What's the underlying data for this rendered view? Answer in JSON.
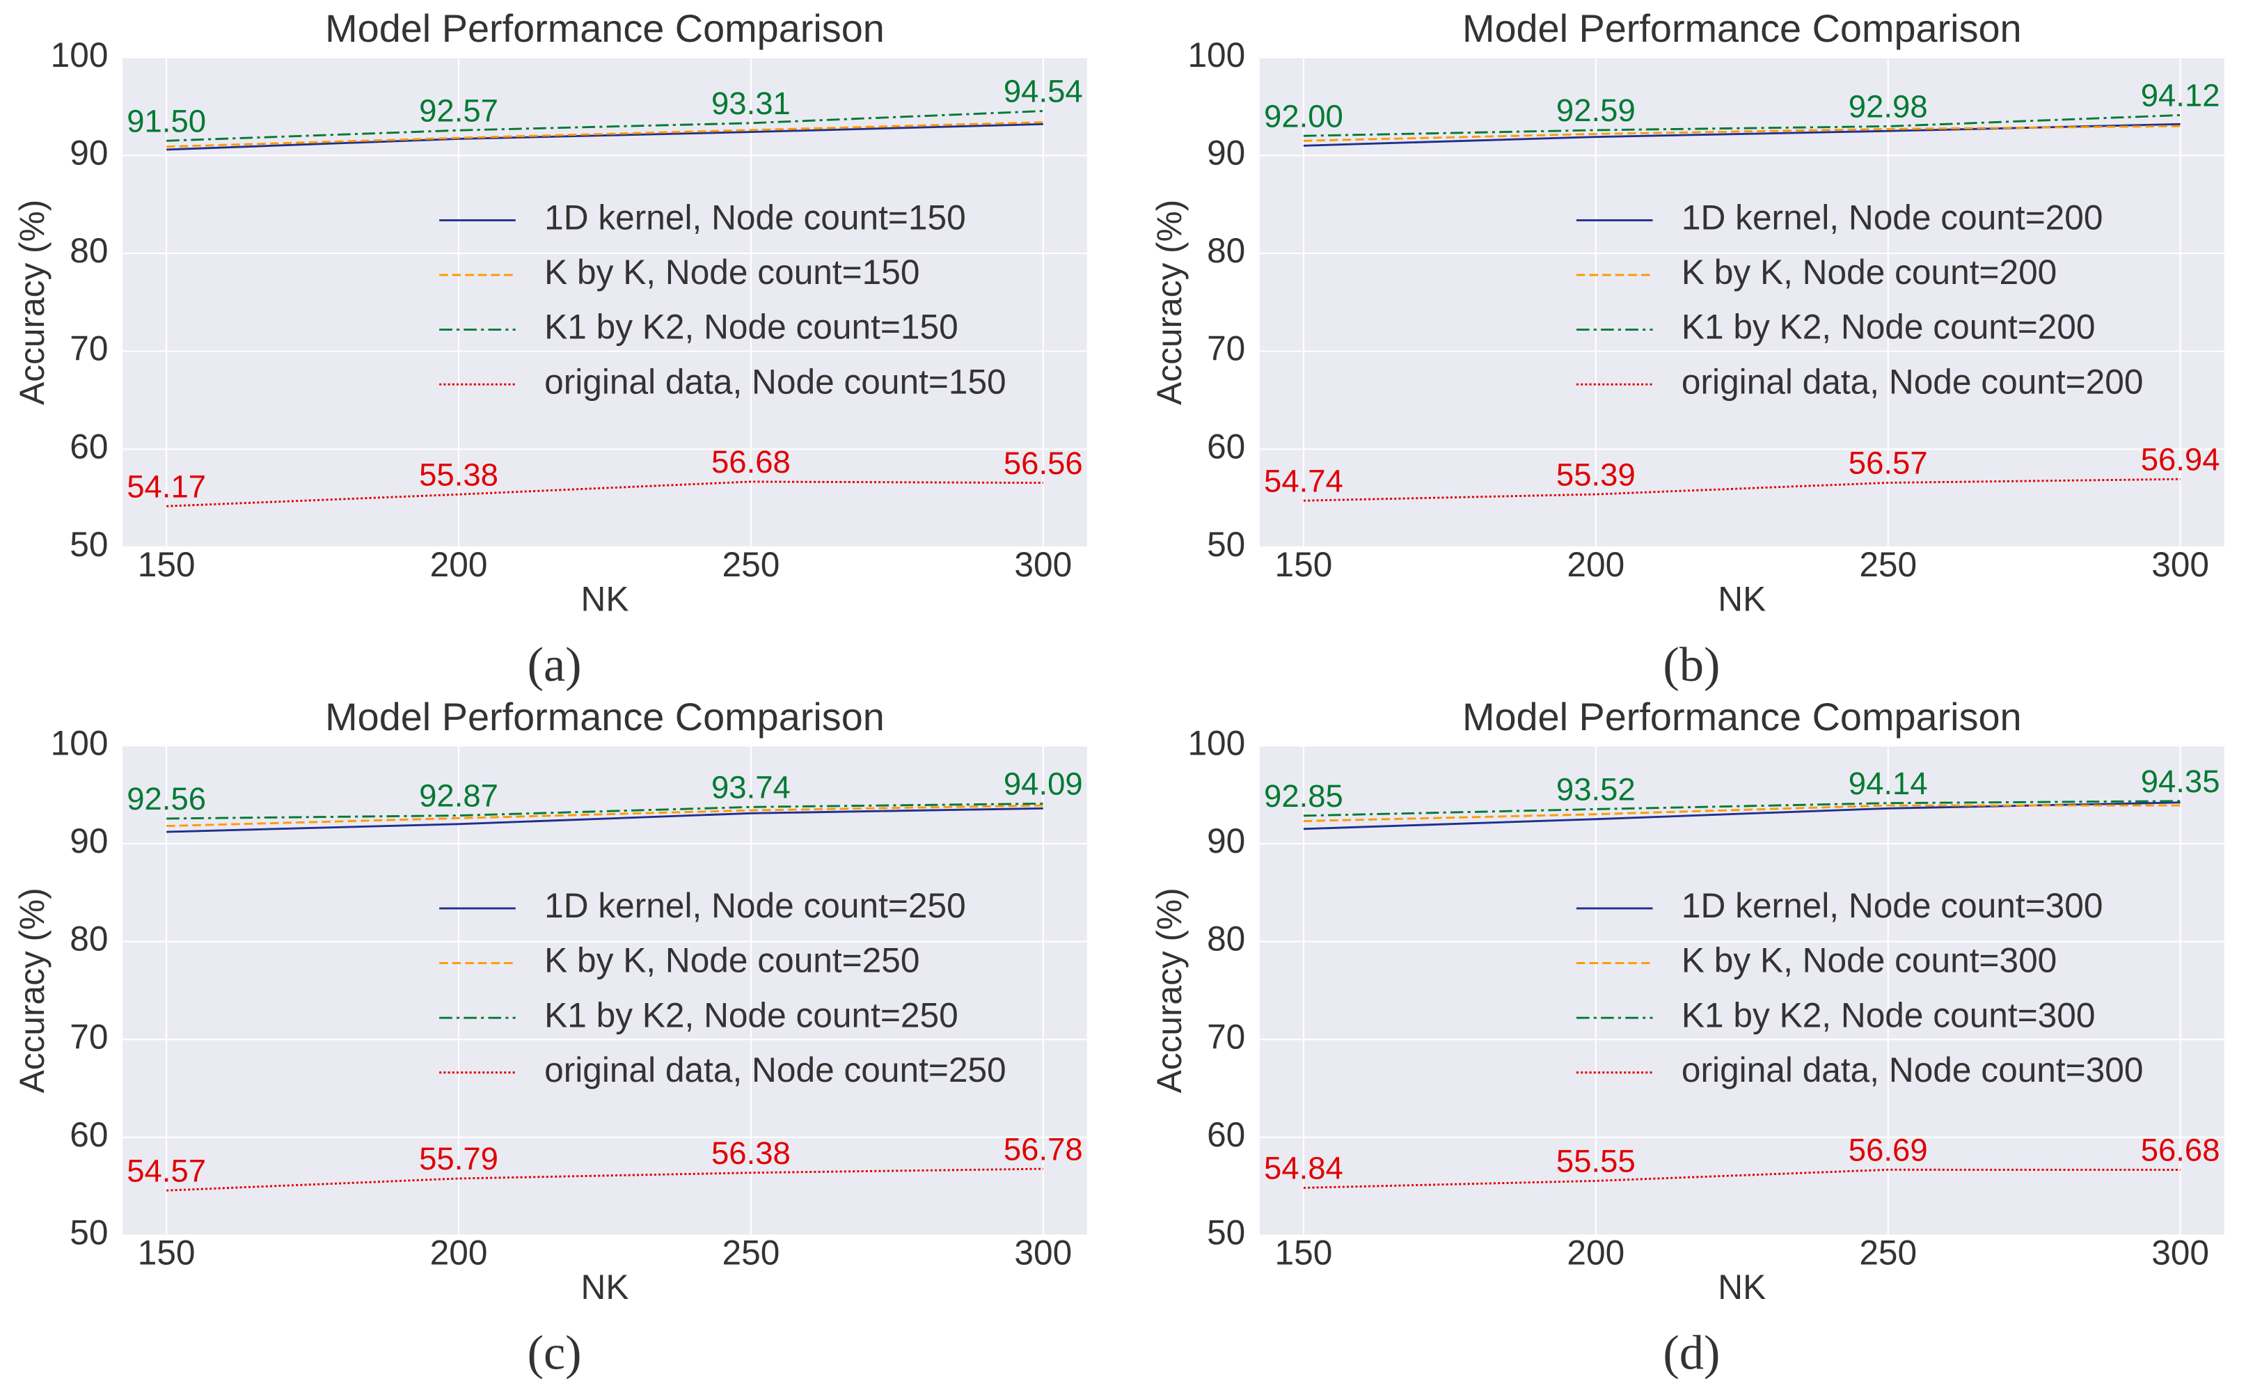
{
  "chart_data": [
    {
      "type": "line",
      "title": "Model Performance Comparison",
      "caption": "(a)",
      "x_label": "NK",
      "y_label": "Accuracy (%)",
      "x": [
        150,
        200,
        250,
        300
      ],
      "xlim": [
        142.5,
        307.5
      ],
      "ylim": [
        50,
        100
      ],
      "xticks": [
        150,
        200,
        250,
        300
      ],
      "yticks": [
        50,
        60,
        70,
        80,
        90,
        100
      ],
      "grid": true,
      "legend": "center right",
      "series": [
        {
          "name": "1D kernel, Node count=150",
          "color": "#1f2f8f",
          "linestyle": "solid",
          "values": [
            90.6,
            91.7,
            92.4,
            93.2
          ]
        },
        {
          "name": "K by K, Node count=150",
          "color": "#ff9900",
          "linestyle": "dashed",
          "values": [
            90.9,
            91.8,
            92.6,
            93.4
          ]
        },
        {
          "name": "K1 by K2, Node count=150",
          "color": "#007a33",
          "linestyle": "dashdot",
          "values": [
            91.5,
            92.57,
            93.31,
            94.54
          ],
          "value_labels": [
            "91.50",
            "92.57",
            "93.31",
            "94.54"
          ]
        },
        {
          "name": "original data, Node count=150",
          "color": "#e00000",
          "linestyle": "dotted",
          "values": [
            54.17,
            55.38,
            56.68,
            56.56
          ],
          "value_labels": [
            "54.17",
            "55.38",
            "56.68",
            "56.56"
          ]
        }
      ]
    },
    {
      "type": "line",
      "title": "Model Performance Comparison",
      "caption": "(b)",
      "x_label": "NK",
      "y_label": "Accuracy (%)",
      "x": [
        150,
        200,
        250,
        300
      ],
      "xlim": [
        142.5,
        307.5
      ],
      "ylim": [
        50,
        100
      ],
      "xticks": [
        150,
        200,
        250,
        300
      ],
      "yticks": [
        50,
        60,
        70,
        80,
        90,
        100
      ],
      "grid": true,
      "legend": "center right",
      "series": [
        {
          "name": "1D kernel, Node count=200",
          "color": "#1f2f8f",
          "linestyle": "solid",
          "values": [
            91.0,
            91.9,
            92.5,
            93.2
          ]
        },
        {
          "name": "K by K, Node count=200",
          "color": "#ff9900",
          "linestyle": "dashed",
          "values": [
            91.5,
            92.2,
            92.7,
            93.0
          ]
        },
        {
          "name": "K1 by K2, Node count=200",
          "color": "#007a33",
          "linestyle": "dashdot",
          "values": [
            92.0,
            92.59,
            92.98,
            94.12
          ],
          "value_labels": [
            "92.00",
            "92.59",
            "92.98",
            "94.12"
          ]
        },
        {
          "name": "original data, Node count=200",
          "color": "#e00000",
          "linestyle": "dotted",
          "values": [
            54.74,
            55.39,
            56.57,
            56.94
          ],
          "value_labels": [
            "54.74",
            "55.39",
            "56.57",
            "56.94"
          ]
        }
      ]
    },
    {
      "type": "line",
      "title": "Model Performance Comparison",
      "caption": "(c)",
      "x_label": "NK",
      "y_label": "Accuracy (%)",
      "x": [
        150,
        200,
        250,
        300
      ],
      "xlim": [
        142.5,
        307.5
      ],
      "ylim": [
        50,
        100
      ],
      "xticks": [
        150,
        200,
        250,
        300
      ],
      "yticks": [
        50,
        60,
        70,
        80,
        90,
        100
      ],
      "grid": true,
      "legend": "center right",
      "series": [
        {
          "name": "1D kernel, Node count=250",
          "color": "#1f2f8f",
          "linestyle": "solid",
          "values": [
            91.2,
            92.0,
            93.1,
            93.6
          ]
        },
        {
          "name": "K by K, Node count=250",
          "color": "#ff9900",
          "linestyle": "dashed",
          "values": [
            91.8,
            92.6,
            93.4,
            93.9
          ]
        },
        {
          "name": "K1 by K2, Node count=250",
          "color": "#007a33",
          "linestyle": "dashdot",
          "values": [
            92.56,
            92.87,
            93.74,
            94.09
          ],
          "value_labels": [
            "92.56",
            "92.87",
            "93.74",
            "94.09"
          ]
        },
        {
          "name": "original data, Node count=250",
          "color": "#e00000",
          "linestyle": "dotted",
          "values": [
            54.57,
            55.79,
            56.38,
            56.78
          ],
          "value_labels": [
            "54.57",
            "55.79",
            "56.38",
            "56.78"
          ]
        }
      ]
    },
    {
      "type": "line",
      "title": "Model Performance Comparison",
      "caption": "(d)",
      "x_label": "NK",
      "y_label": "Accuracy (%)",
      "x": [
        150,
        200,
        250,
        300
      ],
      "xlim": [
        142.5,
        307.5
      ],
      "ylim": [
        50,
        100
      ],
      "xticks": [
        150,
        200,
        250,
        300
      ],
      "yticks": [
        50,
        60,
        70,
        80,
        90,
        100
      ],
      "grid": true,
      "legend": "center right",
      "series": [
        {
          "name": "1D kernel, Node count=300",
          "color": "#1f2f8f",
          "linestyle": "solid",
          "values": [
            91.5,
            92.5,
            93.6,
            94.2
          ]
        },
        {
          "name": "K by K, Node count=300",
          "color": "#ff9900",
          "linestyle": "dashed",
          "values": [
            92.3,
            93.0,
            93.9,
            93.9
          ]
        },
        {
          "name": "K1 by K2, Node count=300",
          "color": "#007a33",
          "linestyle": "dashdot",
          "values": [
            92.85,
            93.52,
            94.14,
            94.35
          ],
          "value_labels": [
            "92.85",
            "93.52",
            "94.14",
            "94.35"
          ]
        },
        {
          "name": "original data, Node count=300",
          "color": "#e00000",
          "linestyle": "dotted",
          "values": [
            54.84,
            55.55,
            56.69,
            56.68
          ],
          "value_labels": [
            "54.84",
            "55.55",
            "56.69",
            "56.68"
          ]
        }
      ]
    }
  ]
}
